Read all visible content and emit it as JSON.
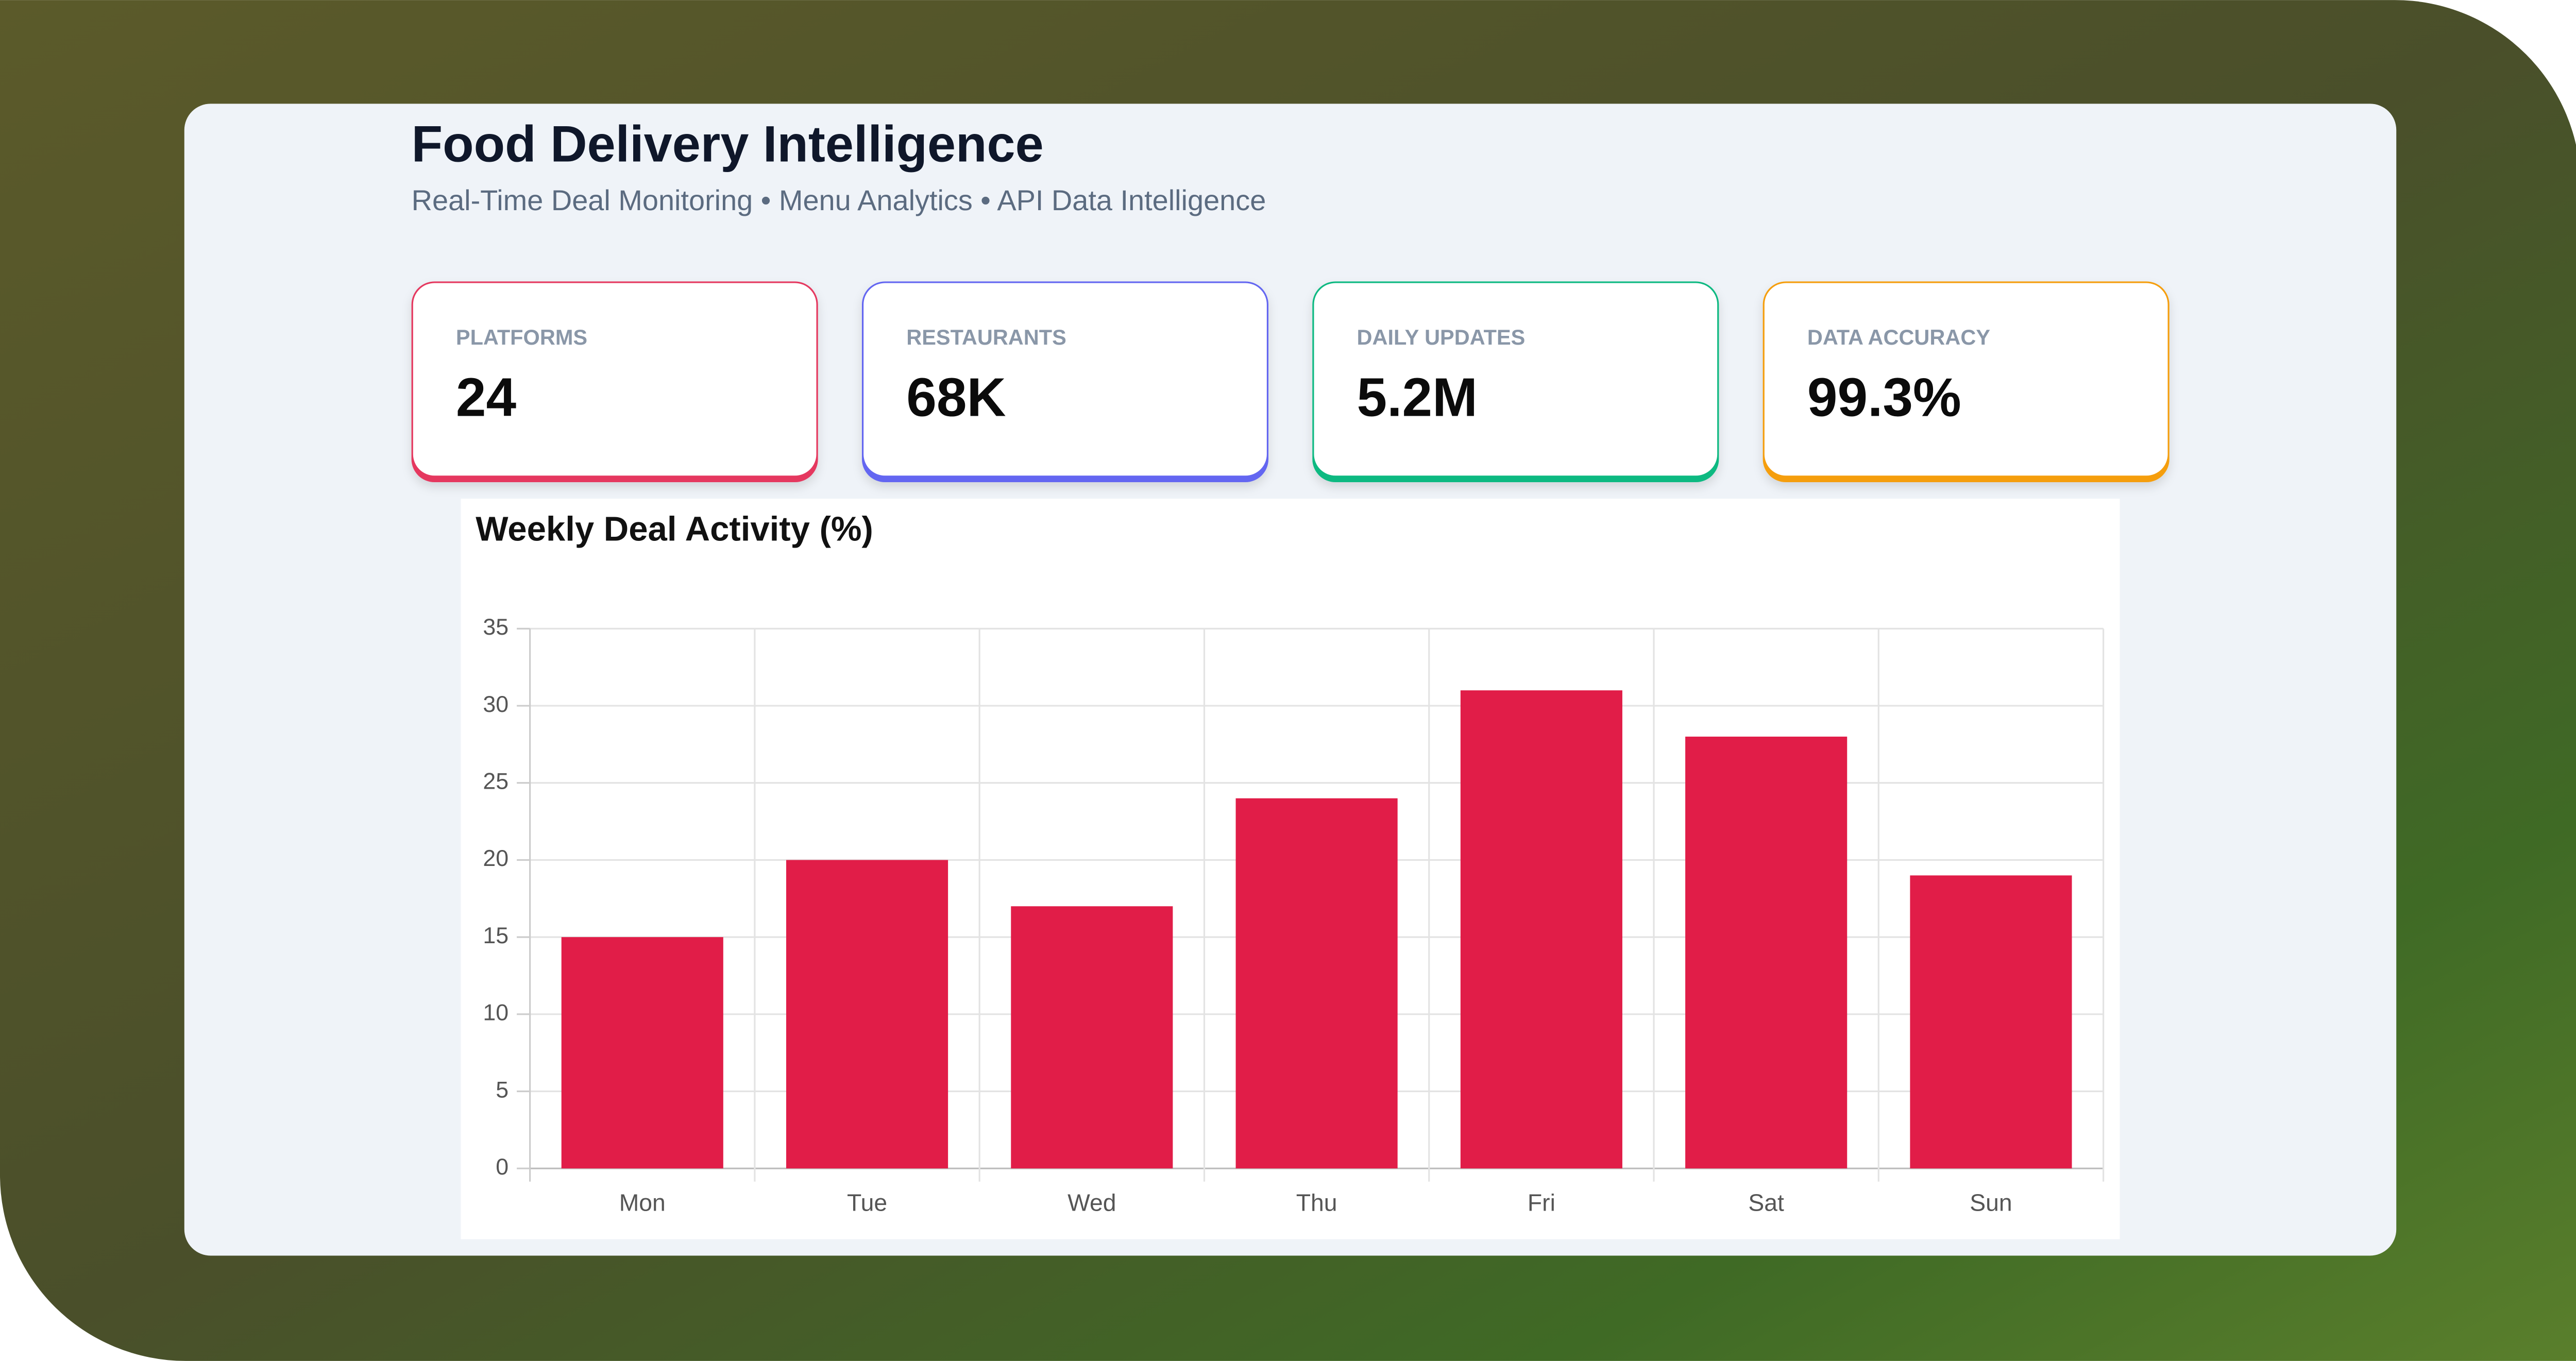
{
  "header": {
    "title": "Food Delivery Intelligence",
    "subtitle": "Real-Time Deal Monitoring • Menu Analytics • API Data Intelligence"
  },
  "stats": [
    {
      "label": "PLATFORMS",
      "value": "24",
      "color": "#e5395f"
    },
    {
      "label": "RESTAURANTS",
      "value": "68K",
      "color": "#6366f1"
    },
    {
      "label": "DAILY UPDATES",
      "value": "5.2M",
      "color": "#10b981"
    },
    {
      "label": "DATA ACCURACY",
      "value": "99.3%",
      "color": "#f59e0b"
    }
  ],
  "chart_data": {
    "type": "bar",
    "title": "Weekly Deal Activity (%)",
    "categories": [
      "Mon",
      "Tue",
      "Wed",
      "Thu",
      "Fri",
      "Sat",
      "Sun"
    ],
    "values": [
      15,
      20,
      17,
      24,
      31,
      28,
      19
    ],
    "color": "#e11d48",
    "ylim": [
      0,
      35
    ],
    "yticks": [
      0,
      5,
      10,
      15,
      20,
      25,
      30,
      35
    ],
    "grid": true
  }
}
